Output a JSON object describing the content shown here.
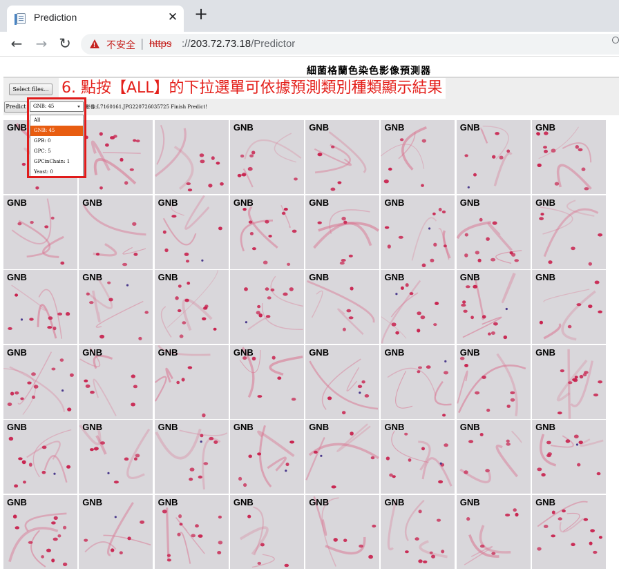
{
  "browser": {
    "tab_title": "Prediction",
    "tab_close": "✕",
    "new_tab": "+",
    "nav": {
      "back": "←",
      "forward": "→",
      "reload": "↻"
    },
    "security_label": "不安全",
    "url_separator": "|",
    "url_scheme": "https",
    "url_rest_prefix": "://",
    "url_host": "203.72.73.18",
    "url_path": "/Predictor"
  },
  "page": {
    "title": "細菌格蘭色染色影像預測器",
    "select_files_label": "Select files...",
    "predict_label": "Predict",
    "instruction": "6. 點按【ALL】的下拉選單可依據預測類別種類顯示結果",
    "selected_option": "GNB: 45",
    "status": "影像:L7160161.JPG220726035725 Finish Predict!",
    "dropdown_options": [
      "All",
      "GNB: 45",
      "GPB: 0",
      "GPC: 5",
      "GPCinChain: 1",
      "Yeast: 0"
    ],
    "dropdown_selected_index": 1
  },
  "grid": {
    "rows": 6,
    "cols": 8,
    "labels": [
      [
        "GNB",
        "",
        "",
        "GNB",
        "GNB",
        "GNB",
        "GNB",
        "GNB"
      ],
      [
        "GNB",
        "GNB",
        "GNB",
        "GNB",
        "GNB",
        "GNB",
        "GNB",
        "GNB"
      ],
      [
        "GNB",
        "GNB",
        "GNB",
        "",
        "GNB",
        "GNB",
        "GNB",
        "GNB"
      ],
      [
        "GNB",
        "GNB",
        "GNB",
        "GNB",
        "GNB",
        "GNB",
        "GNB",
        "GNB"
      ],
      [
        "GNB",
        "GNB",
        "GNB",
        "GNB",
        "GNB",
        "GNB",
        "GNB",
        "GNB"
      ],
      [
        "GNB",
        "GNB",
        "GNB",
        "GNB",
        "GNB",
        "GNB",
        "GNB",
        "GNB"
      ]
    ]
  },
  "colors": {
    "callout_text": "#e4211c",
    "highlight_border": "#e01b1b",
    "selected_option_bg": "#e85d10",
    "insecure_red": "#c5221f",
    "cell_background": "#d9d7db",
    "bacteria_red": "#c8234f",
    "stain_pink": "#d96f8d",
    "purple_dot": "#4b3a8c"
  },
  "icons": [
    "document-favicon-icon",
    "close-icon",
    "plus-icon",
    "back-arrow-icon",
    "forward-arrow-icon",
    "reload-icon",
    "warning-triangle-icon",
    "zoom-icon",
    "dropdown-arrow-icon"
  ]
}
